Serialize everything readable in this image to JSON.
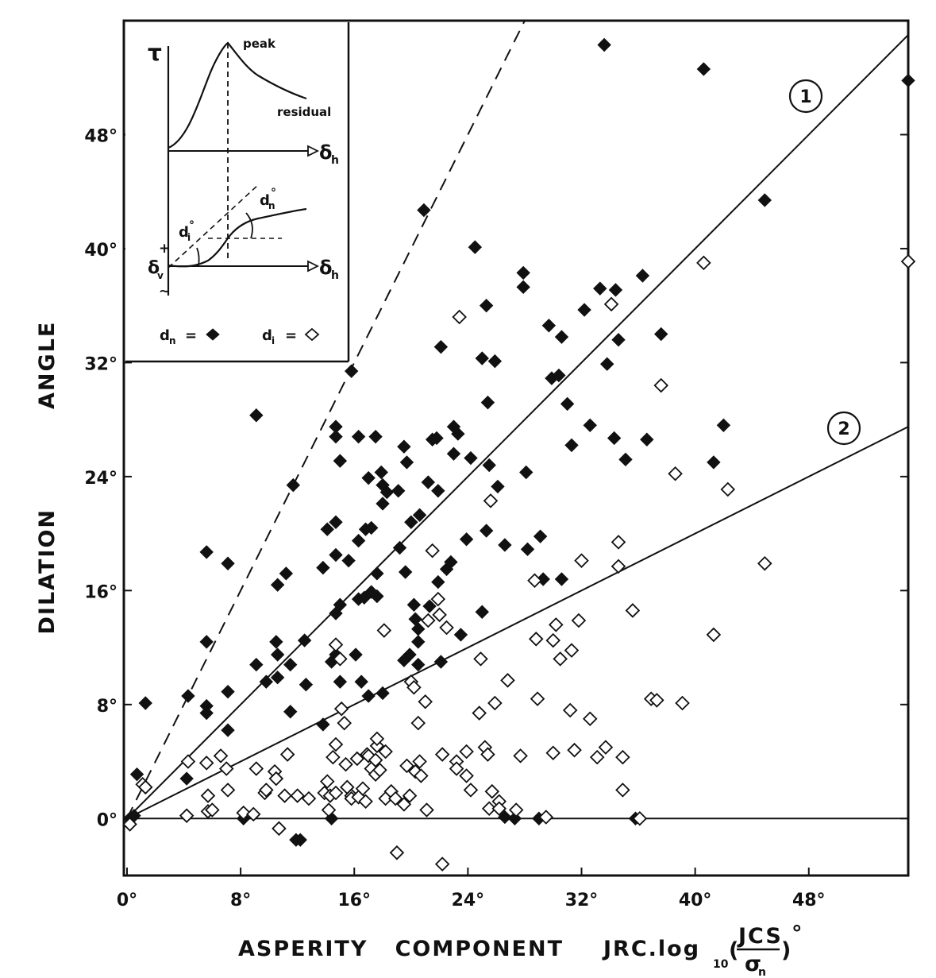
{
  "chart_data": {
    "type": "scatter",
    "title": "",
    "xlabel": "ASPERITY   COMPONENT",
    "xlabel_formula": "JRC.log",
    "xlabel_formula_sub": "10",
    "xlabel_formula_frac_num": "JCS",
    "xlabel_formula_frac_den": "σ",
    "xlabel_formula_frac_den_sub": "n",
    "xlabel_degree": "°",
    "ylabel_word1": "DILATION",
    "ylabel_word2": "ANGLE",
    "xlim": [
      0,
      55
    ],
    "ylim": [
      -4,
      56
    ],
    "x_ticks": [
      0,
      8,
      16,
      24,
      32,
      40,
      48
    ],
    "x_tick_labels": [
      "0°",
      "8°",
      "16°",
      "24°",
      "32°",
      "40°",
      "48°"
    ],
    "y_ticks": [
      0,
      8,
      16,
      24,
      32,
      40,
      48
    ],
    "y_tick_labels": [
      "0°",
      "8°",
      "16°",
      "24°",
      "32°",
      "40°",
      "48°"
    ],
    "lines": [
      {
        "name": "dashed",
        "style": "dashed",
        "slope": 2.0
      },
      {
        "name": "1",
        "label": "1",
        "style": "solid",
        "slope": 1.0
      },
      {
        "name": "2",
        "label": "2",
        "style": "solid",
        "slope": 0.5
      },
      {
        "name": "zero",
        "style": "solid",
        "slope": 0.0
      }
    ],
    "series": [
      {
        "name": "d_n (peak dilation)",
        "marker": "filled-diamond",
        "points": [
          [
            0.2,
            0
          ],
          [
            0.5,
            0.2
          ],
          [
            0.7,
            3.1
          ],
          [
            1.3,
            8.1
          ],
          [
            4.2,
            2.8
          ],
          [
            4.3,
            8.6
          ],
          [
            5.6,
            18.7
          ],
          [
            5.6,
            12.4
          ],
          [
            5.6,
            7.9
          ],
          [
            5.6,
            7.4
          ],
          [
            7.1,
            17.9
          ],
          [
            7.1,
            6.2
          ],
          [
            7.1,
            8.9
          ],
          [
            8.2,
            0
          ],
          [
            9.1,
            28.3
          ],
          [
            9.1,
            10.8
          ],
          [
            9.8,
            9.6
          ],
          [
            10.5,
            12.4
          ],
          [
            10.6,
            11.5
          ],
          [
            10.6,
            16.4
          ],
          [
            10.6,
            9.9
          ],
          [
            11.2,
            17.2
          ],
          [
            11.5,
            10.8
          ],
          [
            11.5,
            7.5
          ],
          [
            11.7,
            23.4
          ],
          [
            11.9,
            -1.5
          ],
          [
            12.2,
            -1.5
          ],
          [
            12.5,
            12.5
          ],
          [
            12.6,
            9.4
          ],
          [
            13.8,
            6.6
          ],
          [
            13.8,
            17.6
          ],
          [
            14.1,
            20.3
          ],
          [
            14.4,
            0
          ],
          [
            14.4,
            11.0
          ],
          [
            14.7,
            27.5
          ],
          [
            14.7,
            26.8
          ],
          [
            14.7,
            20.8
          ],
          [
            14.7,
            18.5
          ],
          [
            14.7,
            14.4
          ],
          [
            14.7,
            11.5
          ],
          [
            15.0,
            9.6
          ],
          [
            15.0,
            25.1
          ],
          [
            15.0,
            15.0
          ],
          [
            15.6,
            18.1
          ],
          [
            15.8,
            31.4
          ],
          [
            16.1,
            11.5
          ],
          [
            16.3,
            26.8
          ],
          [
            16.3,
            19.5
          ],
          [
            16.3,
            15.4
          ],
          [
            16.5,
            9.6
          ],
          [
            16.7,
            15.5
          ],
          [
            16.8,
            20.3
          ],
          [
            17.0,
            23.9
          ],
          [
            17.0,
            8.6
          ],
          [
            17.2,
            20.4
          ],
          [
            17.2,
            15.9
          ],
          [
            17.5,
            26.8
          ],
          [
            17.6,
            17.2
          ],
          [
            17.6,
            15.6
          ],
          [
            17.9,
            24.3
          ],
          [
            18.0,
            23.4
          ],
          [
            18.0,
            22.1
          ],
          [
            18.0,
            8.8
          ],
          [
            18.3,
            22.9
          ],
          [
            19.1,
            23.0
          ],
          [
            19.2,
            19.0
          ],
          [
            19.5,
            26.1
          ],
          [
            19.5,
            11.1
          ],
          [
            19.6,
            17.3
          ],
          [
            19.7,
            25.0
          ],
          [
            19.9,
            11.5
          ],
          [
            20.0,
            20.8
          ],
          [
            20.2,
            15.0
          ],
          [
            20.3,
            14.0
          ],
          [
            20.5,
            12.4
          ],
          [
            20.5,
            10.8
          ],
          [
            20.5,
            13.3
          ],
          [
            20.6,
            21.3
          ],
          [
            20.9,
            42.7
          ],
          [
            21.2,
            23.6
          ],
          [
            21.3,
            14.9
          ],
          [
            21.5,
            26.6
          ],
          [
            21.8,
            26.7
          ],
          [
            21.9,
            23.0
          ],
          [
            21.9,
            16.6
          ],
          [
            22.1,
            11.0
          ],
          [
            22.1,
            33.1
          ],
          [
            22.5,
            17.5
          ],
          [
            22.8,
            18.0
          ],
          [
            23.0,
            27.5
          ],
          [
            23.0,
            25.6
          ],
          [
            23.3,
            27.0
          ],
          [
            23.5,
            12.9
          ],
          [
            23.9,
            19.6
          ],
          [
            24.2,
            25.3
          ],
          [
            24.5,
            40.1
          ],
          [
            25.0,
            32.3
          ],
          [
            25.0,
            14.5
          ],
          [
            25.3,
            36.0
          ],
          [
            25.3,
            20.2
          ],
          [
            25.4,
            29.2
          ],
          [
            25.5,
            24.8
          ],
          [
            25.9,
            32.1
          ],
          [
            26.1,
            23.3
          ],
          [
            26.6,
            0.1
          ],
          [
            26.6,
            19.2
          ],
          [
            27.3,
            0
          ],
          [
            27.9,
            38.3
          ],
          [
            27.9,
            37.3
          ],
          [
            28.1,
            24.3
          ],
          [
            28.2,
            18.9
          ],
          [
            29.0,
            0
          ],
          [
            29.1,
            19.8
          ],
          [
            29.3,
            16.8
          ],
          [
            29.7,
            34.6
          ],
          [
            29.9,
            30.9
          ],
          [
            30.4,
            31.1
          ],
          [
            30.6,
            33.8
          ],
          [
            30.6,
            16.8
          ],
          [
            31.0,
            29.1
          ],
          [
            31.3,
            26.2
          ],
          [
            32.2,
            35.7
          ],
          [
            32.6,
            27.6
          ],
          [
            33.3,
            37.2
          ],
          [
            33.6,
            54.3
          ],
          [
            33.8,
            31.9
          ],
          [
            34.3,
            26.7
          ],
          [
            34.4,
            37.1
          ],
          [
            34.6,
            33.6
          ],
          [
            35.1,
            25.2
          ],
          [
            35.8,
            0
          ],
          [
            36.3,
            38.1
          ],
          [
            36.6,
            26.6
          ],
          [
            37.6,
            34.0
          ],
          [
            40.6,
            52.6
          ],
          [
            41.3,
            25.0
          ],
          [
            42.0,
            27.6
          ],
          [
            44.9,
            43.4
          ],
          [
            55.0,
            51.8
          ]
        ]
      },
      {
        "name": "d_i (initial dilation)",
        "marker": "open-diamond",
        "points": [
          [
            0.2,
            -0.4
          ],
          [
            1.1,
            2.4
          ],
          [
            1.3,
            2.2
          ],
          [
            4.2,
            0.2
          ],
          [
            4.3,
            4.0
          ],
          [
            5.6,
            3.9
          ],
          [
            5.7,
            1.6
          ],
          [
            5.7,
            0.5
          ],
          [
            6.0,
            0.6
          ],
          [
            6.6,
            4.4
          ],
          [
            7.0,
            3.5
          ],
          [
            7.1,
            2.0
          ],
          [
            8.2,
            0.4
          ],
          [
            8.9,
            0.3
          ],
          [
            9.1,
            3.5
          ],
          [
            9.7,
            1.8
          ],
          [
            9.8,
            2.0
          ],
          [
            10.4,
            3.3
          ],
          [
            10.5,
            2.8
          ],
          [
            10.7,
            -0.7
          ],
          [
            11.1,
            1.6
          ],
          [
            11.3,
            4.5
          ],
          [
            12.0,
            1.6
          ],
          [
            12.8,
            1.4
          ],
          [
            13.9,
            1.8
          ],
          [
            14.1,
            2.6
          ],
          [
            14.2,
            0.6
          ],
          [
            14.3,
            1.6
          ],
          [
            14.5,
            4.3
          ],
          [
            14.7,
            12.2
          ],
          [
            14.7,
            5.2
          ],
          [
            14.7,
            1.8
          ],
          [
            15.0,
            11.2
          ],
          [
            15.1,
            7.7
          ],
          [
            15.3,
            6.7
          ],
          [
            15.4,
            3.8
          ],
          [
            15.5,
            2.2
          ],
          [
            15.8,
            1.6
          ],
          [
            15.8,
            1.4
          ],
          [
            16.2,
            4.2
          ],
          [
            16.3,
            1.5
          ],
          [
            16.6,
            2.1
          ],
          [
            16.8,
            1.2
          ],
          [
            16.9,
            4.5
          ],
          [
            17.0,
            4.4
          ],
          [
            17.2,
            3.5
          ],
          [
            17.5,
            4.1
          ],
          [
            17.5,
            3.1
          ],
          [
            17.6,
            5.1
          ],
          [
            17.6,
            5.6
          ],
          [
            17.8,
            3.4
          ],
          [
            18.1,
            13.2
          ],
          [
            18.2,
            4.7
          ],
          [
            18.2,
            1.4
          ],
          [
            18.6,
            1.9
          ],
          [
            18.9,
            1.4
          ],
          [
            19.0,
            -2.4
          ],
          [
            19.5,
            1.0
          ],
          [
            19.7,
            3.7
          ],
          [
            19.9,
            1.6
          ],
          [
            20.0,
            9.6
          ],
          [
            20.2,
            9.2
          ],
          [
            20.3,
            3.3
          ],
          [
            20.5,
            6.7
          ],
          [
            20.6,
            4.0
          ],
          [
            20.7,
            3.0
          ],
          [
            21.0,
            8.2
          ],
          [
            21.1,
            0.6
          ],
          [
            21.2,
            13.9
          ],
          [
            21.5,
            18.8
          ],
          [
            21.9,
            15.4
          ],
          [
            22.0,
            14.3
          ],
          [
            22.2,
            4.5
          ],
          [
            22.2,
            -3.2
          ],
          [
            22.5,
            13.4
          ],
          [
            23.2,
            4.0
          ],
          [
            23.2,
            3.5
          ],
          [
            23.4,
            35.2
          ],
          [
            23.9,
            3.0
          ],
          [
            23.9,
            4.7
          ],
          [
            24.2,
            2.0
          ],
          [
            24.8,
            7.4
          ],
          [
            24.9,
            11.2
          ],
          [
            25.2,
            5.0
          ],
          [
            25.4,
            4.5
          ],
          [
            25.5,
            0.7
          ],
          [
            25.6,
            22.3
          ],
          [
            25.7,
            1.9
          ],
          [
            25.9,
            8.1
          ],
          [
            26.2,
            1.2
          ],
          [
            26.2,
            0.7
          ],
          [
            26.8,
            9.7
          ],
          [
            27.4,
            0.6
          ],
          [
            27.7,
            4.4
          ],
          [
            28.7,
            16.7
          ],
          [
            28.8,
            12.6
          ],
          [
            28.9,
            8.4
          ],
          [
            29.5,
            0.1
          ],
          [
            30.0,
            4.6
          ],
          [
            30.0,
            12.5
          ],
          [
            30.2,
            13.6
          ],
          [
            30.5,
            11.2
          ],
          [
            31.2,
            7.6
          ],
          [
            31.3,
            11.8
          ],
          [
            31.5,
            4.8
          ],
          [
            31.8,
            13.9
          ],
          [
            32.0,
            18.1
          ],
          [
            32.6,
            7.0
          ],
          [
            33.1,
            4.3
          ],
          [
            33.7,
            5.0
          ],
          [
            34.1,
            36.1
          ],
          [
            34.6,
            19.4
          ],
          [
            34.6,
            17.7
          ],
          [
            34.9,
            2.0
          ],
          [
            34.9,
            4.3
          ],
          [
            35.6,
            14.6
          ],
          [
            36.1,
            0
          ],
          [
            36.9,
            8.4
          ],
          [
            37.3,
            8.3
          ],
          [
            37.6,
            30.4
          ],
          [
            38.6,
            24.2
          ],
          [
            39.1,
            8.1
          ],
          [
            40.6,
            39.0
          ],
          [
            41.3,
            12.9
          ],
          [
            42.3,
            23.1
          ],
          [
            44.9,
            17.9
          ],
          [
            55.0,
            39.1
          ]
        ]
      }
    ],
    "inset": {
      "tau_label": "τ",
      "peak_label": "peak",
      "residual_label": "residual",
      "delta_h": "δ",
      "delta_h_sub": "h",
      "delta_v": "δ",
      "delta_v_sub": "v",
      "plus": "+",
      "minus": "~",
      "dn_label": "d",
      "dn_sub": "n",
      "di_label": "d",
      "di_sub": "i",
      "degree": "°",
      "legend_dn": "d",
      "legend_dn_sub": "n",
      "legend_di": "d",
      "legend_di_sub": "i",
      "legend_eq": "="
    },
    "colors": {
      "ink": "#111111",
      "background": "#ffffff"
    }
  }
}
